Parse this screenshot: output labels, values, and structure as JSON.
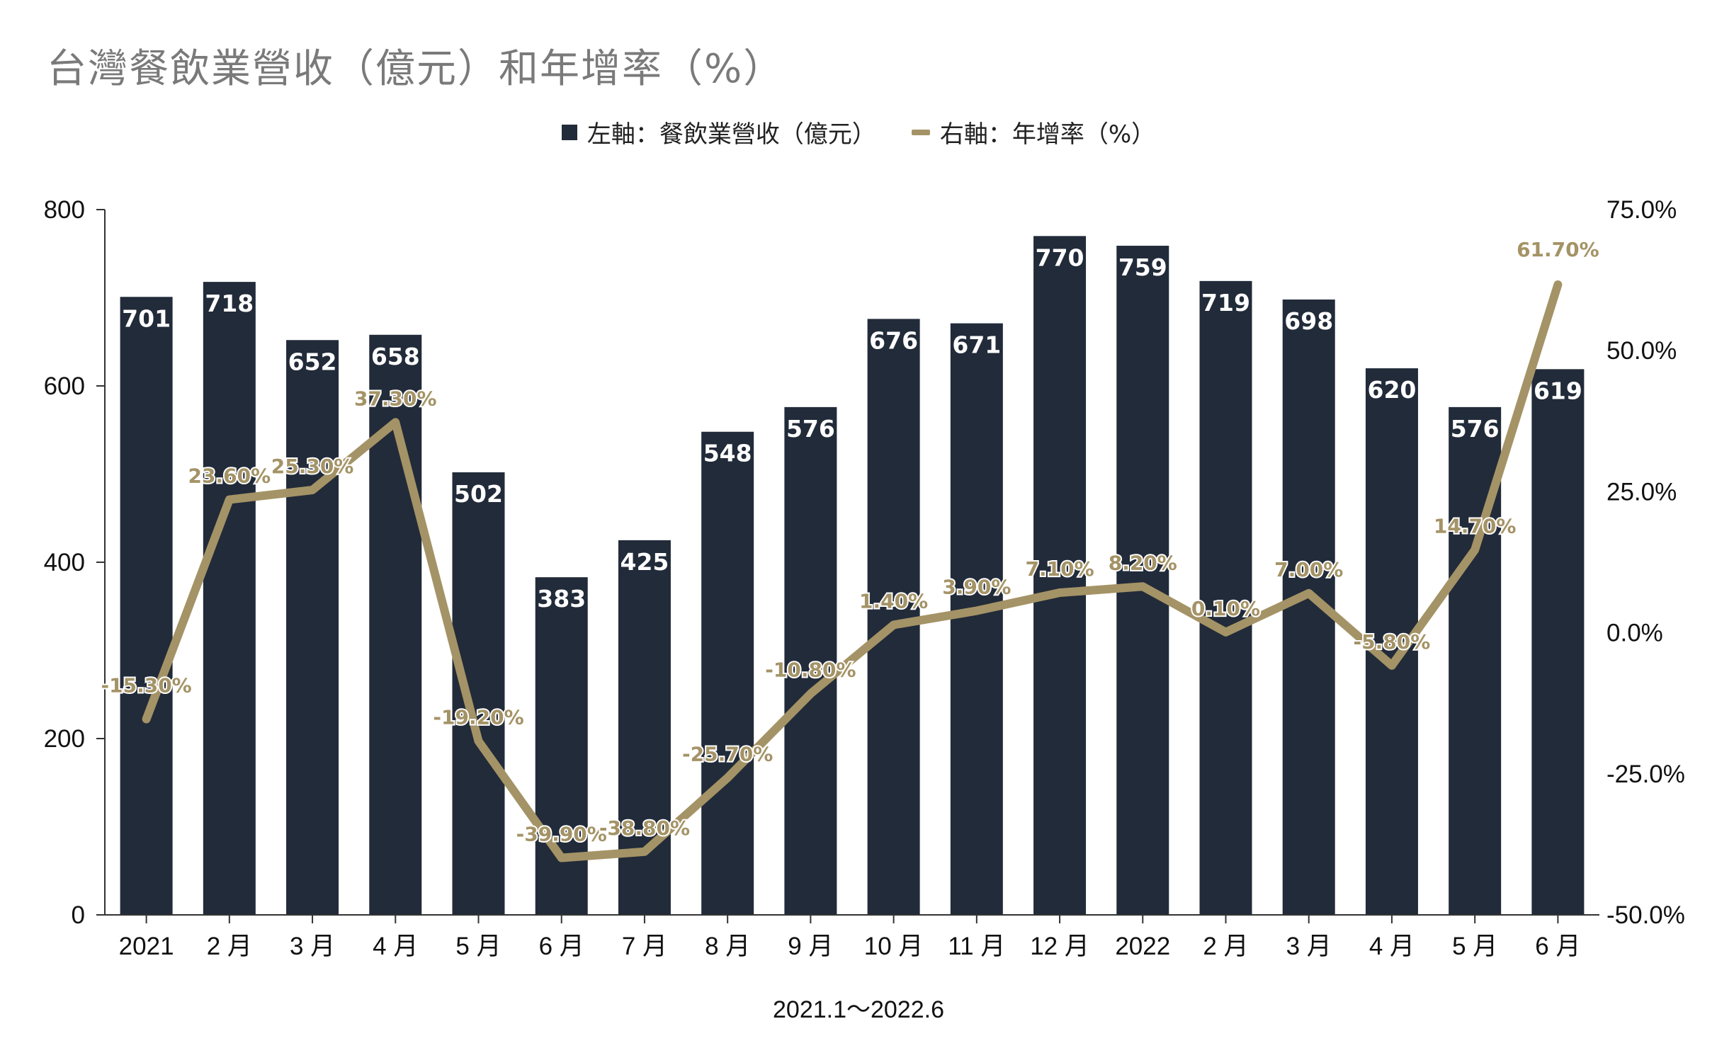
{
  "chart_data": {
    "type": "bar",
    "title": "台灣餐飲業營收（億元）和年增率（%）",
    "subtitle": "2021.1～2022.6",
    "legend": [
      "左軸：餐飲業營收（億元）",
      "右軸：年增率（%）"
    ],
    "legend_position": "top-center",
    "categories": [
      "2021",
      "2 月",
      "3 月",
      "4 月",
      "5 月",
      "6 月",
      "7 月",
      "8 月",
      "9 月",
      "10 月",
      "11 月",
      "12 月",
      "2022",
      "2 月",
      "3 月",
      "4 月",
      "5 月",
      "6 月"
    ],
    "series": [
      {
        "name": "左軸：餐飲業營收（億元）",
        "type": "bar",
        "axis": "left",
        "color": "#222b39",
        "values": [
          701,
          718,
          652,
          658,
          502,
          383,
          425,
          548,
          576,
          676,
          671,
          770,
          759,
          719,
          698,
          620,
          576,
          619
        ],
        "labels": [
          "701",
          "718",
          "652",
          "658",
          "502",
          "383",
          "425",
          "548",
          "576",
          "676",
          "671",
          "770",
          "759",
          "719",
          "698",
          "620",
          "576",
          "619"
        ]
      },
      {
        "name": "右軸：年增率（%）",
        "type": "line",
        "axis": "right",
        "color": "#a49366",
        "values": [
          -15.3,
          23.6,
          25.3,
          37.3,
          -19.2,
          -39.9,
          -38.8,
          -25.7,
          -10.8,
          1.4,
          3.9,
          7.1,
          8.2,
          0.1,
          7.0,
          -5.8,
          14.7,
          61.7
        ],
        "labels": [
          "-15.30%",
          "23.60%",
          "25.30%",
          "37.30%",
          "-19.20%",
          "-39.90%",
          "-38.80%",
          "-25.70%",
          "-10.80%",
          "1.40%",
          "3.90%",
          "7.10%",
          "8.20%",
          "0.10%",
          "7.00%",
          "-5.80%",
          "14.70%",
          "61.70%"
        ]
      }
    ],
    "y_left": {
      "min": 0,
      "max": 800,
      "ticks": [
        "0",
        "200",
        "400",
        "600",
        "800"
      ]
    },
    "y_right": {
      "min": -50,
      "max": 75,
      "ticks": [
        "-50.0%",
        "-25.0%",
        "0.0%",
        "25.0%",
        "50.0%",
        "75.0%"
      ]
    },
    "grid": false
  }
}
